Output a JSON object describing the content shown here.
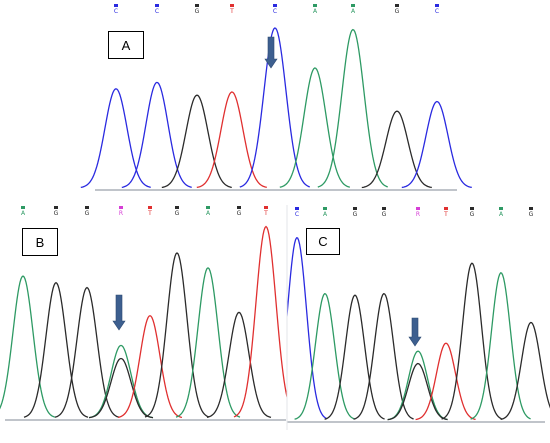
{
  "colors": {
    "C": "#2a2ae0",
    "A": "#2e9a64",
    "G": "#2b2b2b",
    "T": "#e03030",
    "R": "#d63fd6",
    "arrow": "#3d5f8f",
    "axis": "#9aa0aa"
  },
  "panels": [
    {
      "label": "A",
      "bases": [
        "C",
        "C",
        "G",
        "T",
        "C",
        "A",
        "A",
        "G",
        "C"
      ],
      "peak_heights": [
        0.62,
        0.66,
        0.58,
        0.6,
        1.0,
        0.75,
        0.99,
        0.48,
        0.54
      ],
      "arrow": "mutation-site-indicator",
      "arrow_at_base": 5
    },
    {
      "label": "B",
      "bases": [
        "A",
        "G",
        "G",
        "R",
        "T",
        "G",
        "A",
        "G",
        "T"
      ],
      "peak_heights": [
        0.86,
        0.82,
        0.79,
        0.44,
        0.62,
        1.0,
        0.91,
        0.64,
        1.16
      ],
      "arrow": "mutation-site-indicator",
      "arrow_at_base": 4
    },
    {
      "label": "C",
      "bases": [
        "C",
        "A",
        "G",
        "G",
        "R",
        "T",
        "G",
        "A",
        "G"
      ],
      "peak_heights": [
        1.14,
        0.79,
        0.78,
        0.79,
        0.43,
        0.48,
        0.98,
        0.92,
        0.61
      ],
      "arrow": "mutation-site-indicator",
      "arrow_at_base": 5
    }
  ]
}
